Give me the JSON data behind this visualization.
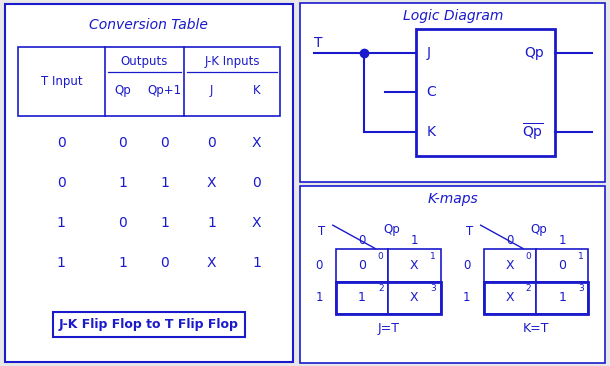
{
  "bg_color": "#e8e8e8",
  "panel_color": "#ffffff",
  "blue": "#1a1acc",
  "title_fontsize": 10,
  "label_fontsize": 8.5,
  "cell_fontsize": 9,
  "conv_title": "Conversion Table",
  "logic_title": "Logic Diagram",
  "kmap_title": "K-maps",
  "bottom_label": "J-K Flip Flop to T Flip Flop",
  "table_rows": [
    [
      "0",
      "0",
      "0",
      "0",
      "X"
    ],
    [
      "0",
      "1",
      "1",
      "X",
      "0"
    ],
    [
      "1",
      "0",
      "1",
      "1",
      "X"
    ],
    [
      "1",
      "1",
      "0",
      "X",
      "1"
    ]
  ],
  "kmap_j": [
    [
      "0",
      "X"
    ],
    [
      "1",
      "X"
    ]
  ],
  "kmap_k": [
    [
      "X",
      "0"
    ],
    [
      "X",
      "1"
    ]
  ],
  "kmap_j_label": "J=T",
  "kmap_k_label": "K=T"
}
